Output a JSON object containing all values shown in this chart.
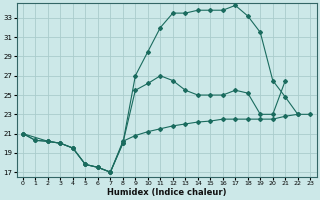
{
  "xlabel": "Humidex (Indice chaleur)",
  "bg_color": "#cce8e8",
  "grid_color": "#aacccc",
  "line_color": "#1a6b5e",
  "xlim": [
    -0.5,
    23.5
  ],
  "ylim": [
    16.5,
    34.5
  ],
  "xticks": [
    0,
    1,
    2,
    3,
    4,
    5,
    6,
    7,
    8,
    9,
    10,
    11,
    12,
    13,
    14,
    15,
    16,
    17,
    18,
    19,
    20,
    21,
    22,
    23
  ],
  "yticks": [
    17,
    19,
    21,
    23,
    25,
    27,
    29,
    31,
    33
  ],
  "line1_x": [
    0,
    1,
    2,
    3,
    4,
    5,
    6,
    7,
    8,
    9,
    10,
    11,
    12,
    13,
    14,
    15,
    16,
    17,
    18,
    19,
    20,
    21,
    22,
    23
  ],
  "line1_y": [
    21,
    20.3,
    20.2,
    20.0,
    19.5,
    17.8,
    17.5,
    17.0,
    20.2,
    20.8,
    21.2,
    21.5,
    21.8,
    22.0,
    22.2,
    22.3,
    22.5,
    22.5,
    22.5,
    22.5,
    22.5,
    22.8,
    23.0,
    23.0
  ],
  "line2_x": [
    0,
    1,
    2,
    3,
    4,
    5,
    6,
    7,
    8,
    9,
    10,
    11,
    12,
    13,
    14,
    15,
    16,
    17,
    18,
    19,
    20,
    21,
    22
  ],
  "line2_y": [
    21,
    20.3,
    20.2,
    20.0,
    19.5,
    17.8,
    17.5,
    17.0,
    20.0,
    27.0,
    29.5,
    32.0,
    33.5,
    33.5,
    33.8,
    33.8,
    33.8,
    34.3,
    33.2,
    31.5,
    26.5,
    24.8,
    23.0
  ],
  "line3_x": [
    0,
    2,
    3,
    4,
    5,
    6,
    7,
    8,
    9,
    10,
    11,
    12,
    13,
    14,
    15,
    16,
    17,
    18,
    19,
    20,
    21
  ],
  "line3_y": [
    21,
    20.2,
    20.0,
    19.5,
    17.8,
    17.5,
    17.0,
    20.0,
    25.5,
    26.2,
    27.0,
    26.5,
    25.5,
    25.0,
    25.0,
    25.0,
    25.5,
    25.2,
    23.0,
    23.0,
    26.5
  ]
}
